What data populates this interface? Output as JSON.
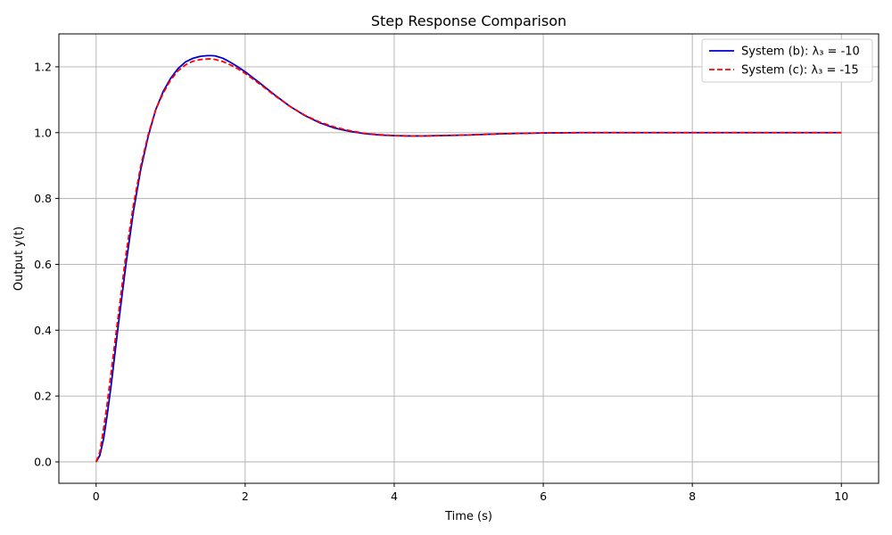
{
  "chart_data": {
    "type": "line",
    "title": "Step Response Comparison",
    "xlabel": "Time (s)",
    "ylabel": "Output y(t)",
    "xlim": [
      -0.5,
      10.5
    ],
    "ylim": [
      -0.065,
      1.3
    ],
    "xticks": [
      0,
      2,
      4,
      6,
      8,
      10
    ],
    "xtick_labels": [
      "0",
      "2",
      "4",
      "6",
      "8",
      "10"
    ],
    "yticks": [
      0.0,
      0.2,
      0.4,
      0.6,
      0.8,
      1.0,
      1.2
    ],
    "ytick_labels": [
      "0.0",
      "0.2",
      "0.4",
      "0.6",
      "0.8",
      "1.0",
      "1.2"
    ],
    "grid": true,
    "legend_position": "top-right",
    "series": [
      {
        "name": "System (b): λ₃ = -10",
        "color": "#0000cc",
        "style": "solid",
        "x": [
          0,
          0.05,
          0.1,
          0.15,
          0.2,
          0.3,
          0.4,
          0.5,
          0.6,
          0.7,
          0.8,
          0.9,
          1.0,
          1.1,
          1.2,
          1.3,
          1.4,
          1.5,
          1.55,
          1.6,
          1.7,
          1.8,
          1.9,
          2.0,
          2.2,
          2.4,
          2.6,
          2.8,
          3.0,
          3.2,
          3.4,
          3.6,
          3.8,
          4.0,
          4.2,
          4.4,
          4.6,
          4.8,
          5.0,
          5.5,
          6.0,
          6.5,
          7.0,
          7.5,
          8.0,
          8.5,
          9.0,
          9.5,
          10.0
        ],
        "y": [
          0.0,
          0.02,
          0.07,
          0.145,
          0.23,
          0.42,
          0.6,
          0.76,
          0.89,
          0.99,
          1.07,
          1.125,
          1.165,
          1.195,
          1.215,
          1.226,
          1.232,
          1.234,
          1.234,
          1.233,
          1.226,
          1.214,
          1.2,
          1.185,
          1.15,
          1.114,
          1.08,
          1.052,
          1.03,
          1.014,
          1.004,
          0.997,
          0.993,
          0.991,
          0.99,
          0.99,
          0.991,
          0.992,
          0.993,
          0.997,
          0.999,
          1.0,
          1.0,
          1.0,
          1.0,
          1.0,
          1.0,
          1.0,
          1.0
        ]
      },
      {
        "name": "System (c): λ₃ = -15",
        "color": "#ff0000",
        "style": "dashed",
        "x": [
          0,
          0.05,
          0.1,
          0.15,
          0.2,
          0.3,
          0.4,
          0.5,
          0.6,
          0.7,
          0.8,
          0.9,
          1.0,
          1.1,
          1.2,
          1.3,
          1.4,
          1.5,
          1.55,
          1.6,
          1.7,
          1.8,
          1.9,
          2.0,
          2.2,
          2.4,
          2.6,
          2.8,
          3.0,
          3.2,
          3.4,
          3.6,
          3.8,
          4.0,
          4.2,
          4.4,
          4.6,
          4.8,
          5.0,
          5.5,
          6.0,
          6.5,
          7.0,
          7.5,
          8.0,
          8.5,
          9.0,
          9.5,
          10.0
        ],
        "y": [
          0.0,
          0.03,
          0.1,
          0.18,
          0.27,
          0.45,
          0.63,
          0.78,
          0.9,
          0.995,
          1.07,
          1.12,
          1.16,
          1.188,
          1.206,
          1.217,
          1.222,
          1.224,
          1.224,
          1.222,
          1.216,
          1.206,
          1.194,
          1.18,
          1.147,
          1.112,
          1.08,
          1.053,
          1.032,
          1.017,
          1.006,
          0.998,
          0.994,
          0.991,
          0.99,
          0.99,
          0.991,
          0.992,
          0.993,
          0.997,
          0.999,
          1.0,
          1.0,
          1.0,
          1.0,
          1.0,
          1.0,
          1.0,
          1.0
        ]
      }
    ]
  }
}
